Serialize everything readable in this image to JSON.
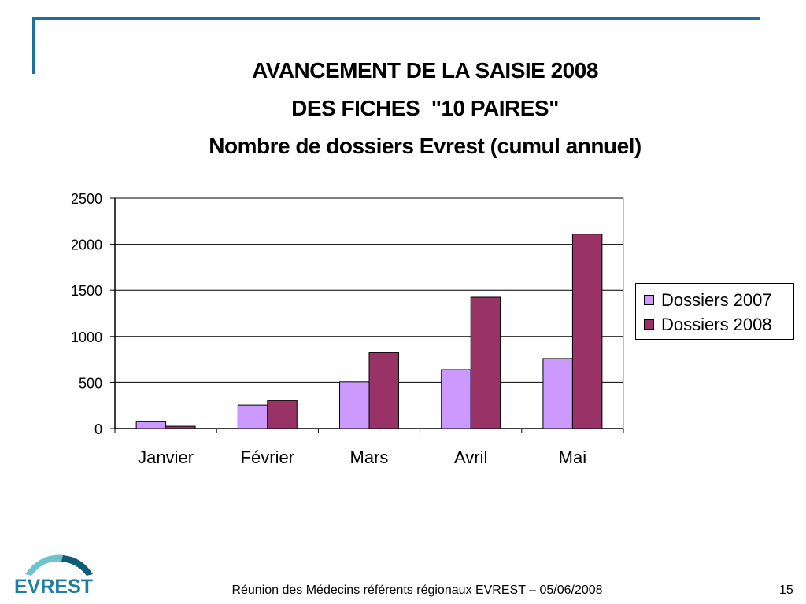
{
  "slide": {
    "title_line1": "AVANCEMENT DE LA SAISIE 2008",
    "title_line2": "DES FICHES  \"10 PAIRES\"",
    "title_line3": "Nombre de dossiers Evrest (cumul annuel)",
    "footer": "Réunion des Médecins référents régionaux EVREST – 05/06/2008",
    "page_number": "15",
    "logo_text": "EVREST"
  },
  "colors": {
    "frame": "#1f6e9b",
    "series_2007": "#cc99ff",
    "series_2008": "#993366",
    "logo_teal": "#2a9bb0",
    "logo_dark": "#0f5c78"
  },
  "chart_data": {
    "type": "bar",
    "categories": [
      "Janvier",
      "Février",
      "Mars",
      "Avril",
      "Mai"
    ],
    "series": [
      {
        "name": "Dossiers 2007",
        "values": [
          80,
          255,
          505,
          640,
          760
        ],
        "color": "#cc99ff"
      },
      {
        "name": "Dossiers 2008",
        "values": [
          25,
          305,
          825,
          1425,
          2110
        ],
        "color": "#993366"
      }
    ],
    "yticks": [
      "0",
      "500",
      "1000",
      "1500",
      "2000",
      "2500"
    ],
    "ylim": [
      0,
      2500
    ],
    "grid": true,
    "legend_position": "right"
  }
}
